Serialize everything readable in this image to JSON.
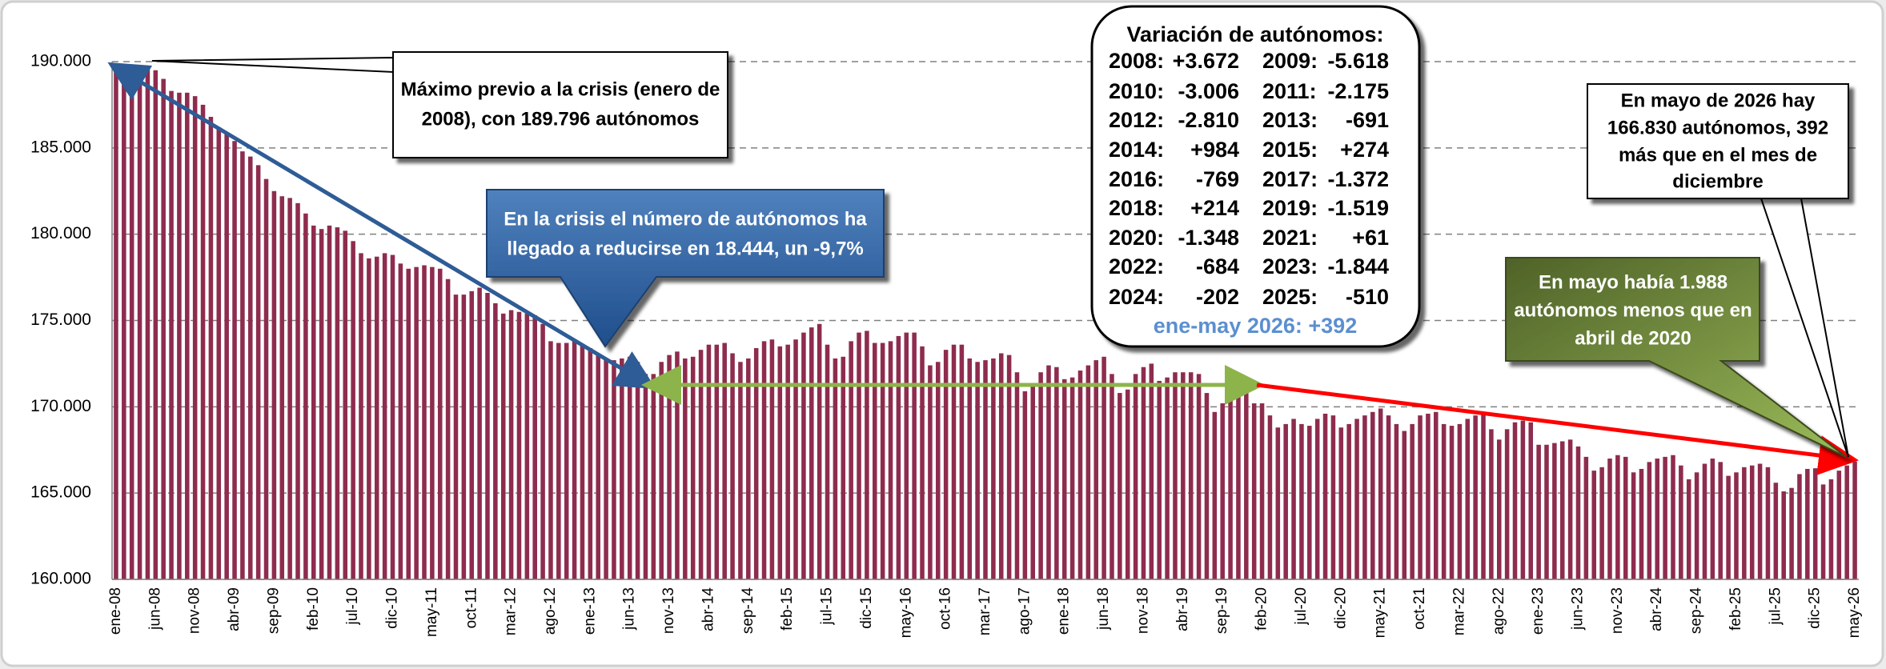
{
  "chart_data": {
    "type": "bar",
    "color": "#8e2c4e",
    "grid": true,
    "ylim": [
      160000,
      190000
    ],
    "yticks": [
      {
        "value": 160000,
        "label": "160.000"
      },
      {
        "value": 165000,
        "label": "165.000"
      },
      {
        "value": 170000,
        "label": "170.000"
      },
      {
        "value": 175000,
        "label": "175.000"
      },
      {
        "value": 180000,
        "label": "180.000"
      },
      {
        "value": 185000,
        "label": "185.000"
      },
      {
        "value": 190000,
        "label": "190.000"
      }
    ],
    "categories": [
      "ene-08",
      null,
      null,
      null,
      null,
      "jun-08",
      null,
      null,
      null,
      null,
      "nov-08",
      null,
      null,
      null,
      null,
      "abr-09",
      null,
      null,
      null,
      null,
      "sep-09",
      null,
      null,
      null,
      null,
      "feb-10",
      null,
      null,
      null,
      null,
      "jul-10",
      null,
      null,
      null,
      null,
      "dic-10",
      null,
      null,
      null,
      null,
      "may-11",
      null,
      null,
      null,
      null,
      "oct-11",
      null,
      null,
      null,
      null,
      "mar-12",
      null,
      null,
      null,
      null,
      "ago-12",
      null,
      null,
      null,
      null,
      "ene-13",
      null,
      null,
      null,
      null,
      "jun-13",
      null,
      null,
      null,
      null,
      "nov-13",
      null,
      null,
      null,
      null,
      "abr-14",
      null,
      null,
      null,
      null,
      "sep-14",
      null,
      null,
      null,
      null,
      "feb-15",
      null,
      null,
      null,
      null,
      "jul-15",
      null,
      null,
      null,
      null,
      "dic-15",
      null,
      null,
      null,
      null,
      "may-16",
      null,
      null,
      null,
      null,
      "oct-16",
      null,
      null,
      null,
      null,
      "mar-17",
      null,
      null,
      null,
      null,
      "ago-17",
      null,
      null,
      null,
      null,
      "ene-18",
      null,
      null,
      null,
      null,
      "jun-18",
      null,
      null,
      null,
      null,
      "nov-18",
      null,
      null,
      null,
      null,
      "abr-19",
      null,
      null,
      null,
      null,
      "sep-19",
      null,
      null,
      null,
      null,
      "feb-20",
      null,
      null,
      null,
      null,
      "jul-20",
      null,
      null,
      null,
      null,
      "dic-20",
      null,
      null,
      null,
      null,
      "may-21",
      null,
      null,
      null,
      null,
      "oct-21",
      null,
      null,
      null,
      null,
      "mar-22",
      null,
      null,
      null,
      null,
      "ago-22",
      null,
      null,
      null,
      null,
      "ene-23",
      null,
      null,
      null,
      null,
      "jun-23",
      null,
      null,
      null,
      null,
      "nov-23",
      null,
      null,
      null,
      null,
      "abr-24",
      null,
      null,
      null,
      null,
      "sep-24",
      null,
      null,
      null,
      null,
      "feb-25",
      null,
      null,
      null,
      null,
      "jul-25",
      null,
      null,
      null,
      null,
      "dic-25",
      null,
      null,
      null,
      null,
      "may-26"
    ],
    "values": [
      189796,
      189200,
      189500,
      189700,
      189600,
      189500,
      189000,
      188300,
      188200,
      188200,
      188000,
      187500,
      186800,
      186200,
      185800,
      185400,
      184800,
      184500,
      184000,
      183200,
      182500,
      182200,
      182100,
      181800,
      181200,
      180500,
      180300,
      180500,
      180400,
      180200,
      179600,
      178900,
      178600,
      178700,
      178900,
      178800,
      178300,
      178000,
      178100,
      178200,
      178100,
      178000,
      177400,
      176500,
      176500,
      176700,
      176900,
      176600,
      176000,
      175400,
      175600,
      175500,
      175400,
      175300,
      174800,
      173800,
      173700,
      173700,
      173800,
      173600,
      173400,
      173000,
      172800,
      172700,
      172800,
      172900,
      172600,
      171900,
      171900,
      172600,
      173000,
      173200,
      172800,
      172900,
      173300,
      173600,
      173600,
      173700,
      173100,
      172600,
      172800,
      173400,
      173800,
      173900,
      173500,
      173600,
      173900,
      174300,
      174600,
      174800,
      173600,
      172800,
      172900,
      173800,
      174300,
      174400,
      173700,
      173700,
      173800,
      174100,
      174300,
      174300,
      173500,
      172400,
      172600,
      173300,
      173600,
      173600,
      172800,
      172600,
      172700,
      172800,
      173100,
      173000,
      172000,
      170900,
      171200,
      172000,
      172400,
      172300,
      171600,
      171700,
      172100,
      172400,
      172700,
      172900,
      171900,
      170800,
      171000,
      171900,
      172300,
      172500,
      171500,
      171700,
      172000,
      172000,
      172000,
      171900,
      170800,
      169700,
      170200,
      170700,
      171000,
      170900,
      170200,
      170200,
      169500,
      168800,
      169000,
      169300,
      169000,
      168900,
      169300,
      169600,
      169500,
      168800,
      169000,
      169300,
      169500,
      169700,
      169900,
      169500,
      169000,
      168600,
      169000,
      169500,
      169600,
      169700,
      169000,
      168900,
      169000,
      169300,
      169500,
      169600,
      168700,
      168100,
      168700,
      169100,
      169200,
      169100,
      167800,
      167800,
      167900,
      168000,
      168100,
      167700,
      167100,
      166300,
      166500,
      167000,
      167200,
      167100,
      166200,
      166400,
      166800,
      167000,
      167100,
      167200,
      166600,
      165800,
      166200,
      166700,
      167000,
      166800,
      166000,
      166200,
      166500,
      166600,
      166700,
      166500,
      165600,
      165100,
      165300,
      166100,
      166400,
      166438,
      165500,
      165800,
      166300,
      166600,
      166830
    ],
    "annotations": [
      {
        "lines": [
          "Máximo previo a la crisis (enero de",
          "2008), con 189.796 autónomos"
        ]
      },
      {
        "lines": [
          "En la crisis el número de autónomos ha",
          "llegado a reducirse en 18.444, un -9,7%"
        ]
      },
      {
        "lines": [
          "En mayo de 2026 hay",
          "166.830 autónomos, 392",
          "más que en el mes de",
          "diciembre"
        ]
      },
      {
        "lines": [
          "En mayo había 1.988",
          "autónomos menos que en",
          "abril de 2020"
        ]
      }
    ],
    "variation": {
      "title": "Variación de autónomos:",
      "rows": [
        [
          "2008:",
          "+3.672",
          "2009:",
          "-5.618"
        ],
        [
          "2010:",
          "-3.006",
          "2011:",
          "-2.175"
        ],
        [
          "2012:",
          "-2.810",
          "2013:",
          "-691"
        ],
        [
          "2014:",
          "+984",
          "2015:",
          "+274"
        ],
        [
          "2016:",
          "-769",
          "2017:",
          "-1.372"
        ],
        [
          "2018:",
          "+214",
          "2019:",
          "-1.519"
        ],
        [
          "2020:",
          "-1.348",
          "2021:",
          "+61"
        ],
        [
          "2022:",
          "-684",
          "2023:",
          "-1.844"
        ],
        [
          "2024:",
          "-202",
          "2025:",
          "-510"
        ]
      ],
      "footer": "ene-may 2026: +392"
    }
  }
}
